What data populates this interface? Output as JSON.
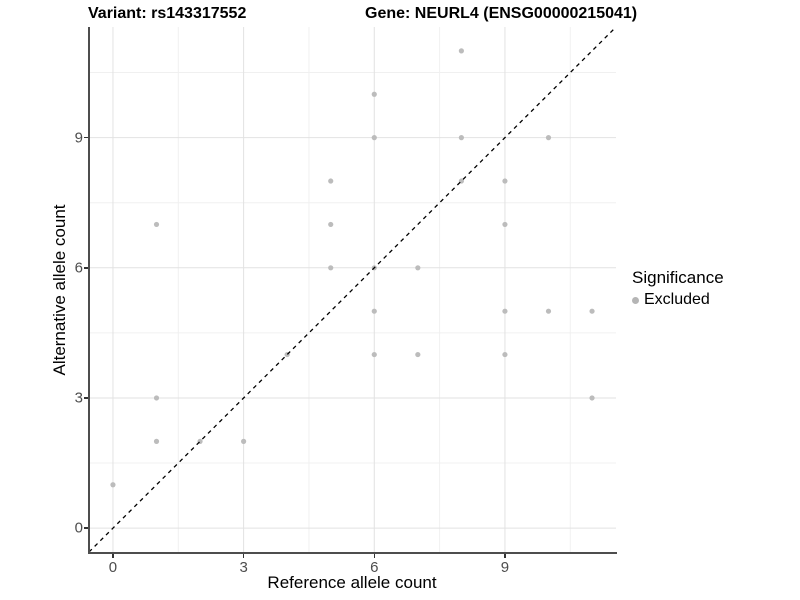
{
  "header": {
    "variant_title": "Variant: rs143317552",
    "gene_title": "Gene: NEURL4 (ENSG00000215041)"
  },
  "chart_data": {
    "type": "scatter",
    "title_left": "Variant: rs143317552",
    "title_right": "Gene: NEURL4 (ENSG00000215041)",
    "xlabel": "Reference allele count",
    "ylabel": "Alternative allele count",
    "xlim": [
      -0.55,
      11.55
    ],
    "ylim": [
      -0.55,
      11.55
    ],
    "x_ticks": [
      0,
      3,
      6,
      9
    ],
    "y_ticks": [
      0,
      3,
      6,
      9
    ],
    "minor_gridlines": [
      1.5,
      4.5,
      7.5,
      10.5
    ],
    "grid": {
      "major_color": "#e2e2e2",
      "minor_color": "#f0f0f0",
      "on": true
    },
    "identity_line": {
      "type": "y=x",
      "style": "dashed",
      "color": "#000000"
    },
    "point_color": "#bcbcbc",
    "points": [
      [
        0,
        1
      ],
      [
        1,
        2
      ],
      [
        1,
        3
      ],
      [
        1,
        7
      ],
      [
        2,
        2
      ],
      [
        3,
        2
      ],
      [
        4,
        4
      ],
      [
        5,
        6
      ],
      [
        5,
        7
      ],
      [
        5,
        8
      ],
      [
        6,
        4
      ],
      [
        6,
        5
      ],
      [
        6,
        6
      ],
      [
        6,
        9
      ],
      [
        6,
        10
      ],
      [
        7,
        4
      ],
      [
        7,
        6
      ],
      [
        8,
        8
      ],
      [
        8,
        9
      ],
      [
        8,
        11
      ],
      [
        9,
        4
      ],
      [
        9,
        5
      ],
      [
        9,
        7
      ],
      [
        9,
        8
      ],
      [
        10,
        5
      ],
      [
        10,
        9
      ],
      [
        11,
        3
      ],
      [
        11,
        5
      ]
    ],
    "legend": {
      "title": "Significance",
      "position": "right",
      "items": [
        {
          "label": "Excluded",
          "color": "#b5b5b5"
        }
      ]
    }
  }
}
